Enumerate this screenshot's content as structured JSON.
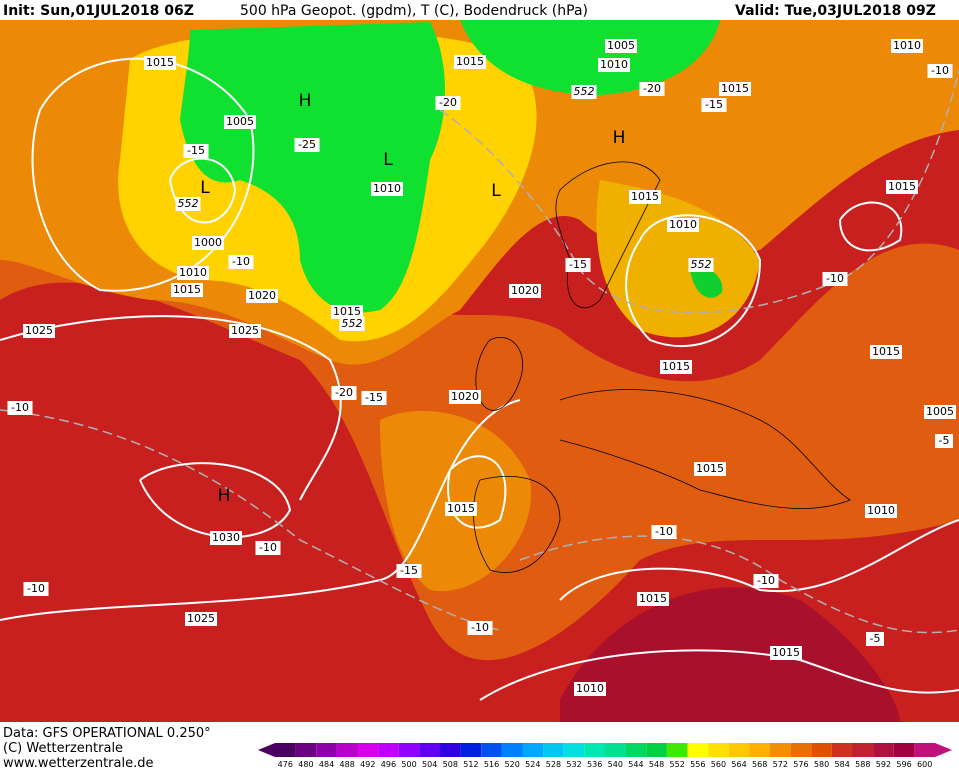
{
  "header": {
    "init": "Init: Sun,01JUL2018 06Z",
    "fields": "500 hPa Geopot. (gpdm), T (C), Bodendruck (hPa)",
    "valid": "Valid: Tue,03JUL2018 09Z"
  },
  "footer": {
    "data": "Data: GFS OPERATIONAL 0.250°",
    "copyright": "(C) Wetterzentrale",
    "url": "www.wetterzentrale.de"
  },
  "scale": {
    "values": [
      476,
      480,
      484,
      488,
      492,
      496,
      500,
      504,
      508,
      512,
      516,
      520,
      524,
      528,
      532,
      536,
      540,
      544,
      548,
      552,
      556,
      560,
      564,
      568,
      572,
      576,
      580,
      584,
      588,
      592,
      596,
      600
    ],
    "colors": [
      "#4a0060",
      "#6a0080",
      "#9000a8",
      "#b800c8",
      "#d800e8",
      "#c000ff",
      "#9000ff",
      "#6000f0",
      "#3000e0",
      "#0020e0",
      "#0050f0",
      "#0080ff",
      "#00a8ff",
      "#00c8f0",
      "#00e0e0",
      "#00e8b0",
      "#00e090",
      "#00d860",
      "#00d040",
      "#40e800",
      "#ffff00",
      "#ffe000",
      "#ffc800",
      "#ffb000",
      "#f09000",
      "#e87000",
      "#e05000",
      "#d03020",
      "#c02030",
      "#b01040",
      "#a00040",
      "#c0107a"
    ]
  },
  "map": {
    "labels": [
      "1015",
      "1005",
      "1000",
      "1010",
      "1015",
      "1020",
      "1025",
      "1025",
      "1015",
      "552",
      "552",
      "-15",
      "-10",
      "-25",
      "1010",
      "-20",
      "1015",
      "1005",
      "1010",
      "552",
      "-20",
      "-15",
      "1015",
      "1010",
      "-10",
      "1015",
      "1015",
      "1010",
      "552",
      "-15",
      "1020",
      "-10",
      "1015",
      "1015",
      "-20",
      "-15",
      "1020",
      "-10",
      "1005",
      "-5",
      "1015",
      "1015",
      "1010",
      "1030",
      "-10",
      "-10",
      "-15",
      "-10",
      "-10",
      "1015",
      "1025",
      "-10",
      "-5",
      "1015",
      "1010"
    ],
    "centers": [
      "H",
      "L",
      "L",
      "L",
      "H",
      "H"
    ]
  }
}
